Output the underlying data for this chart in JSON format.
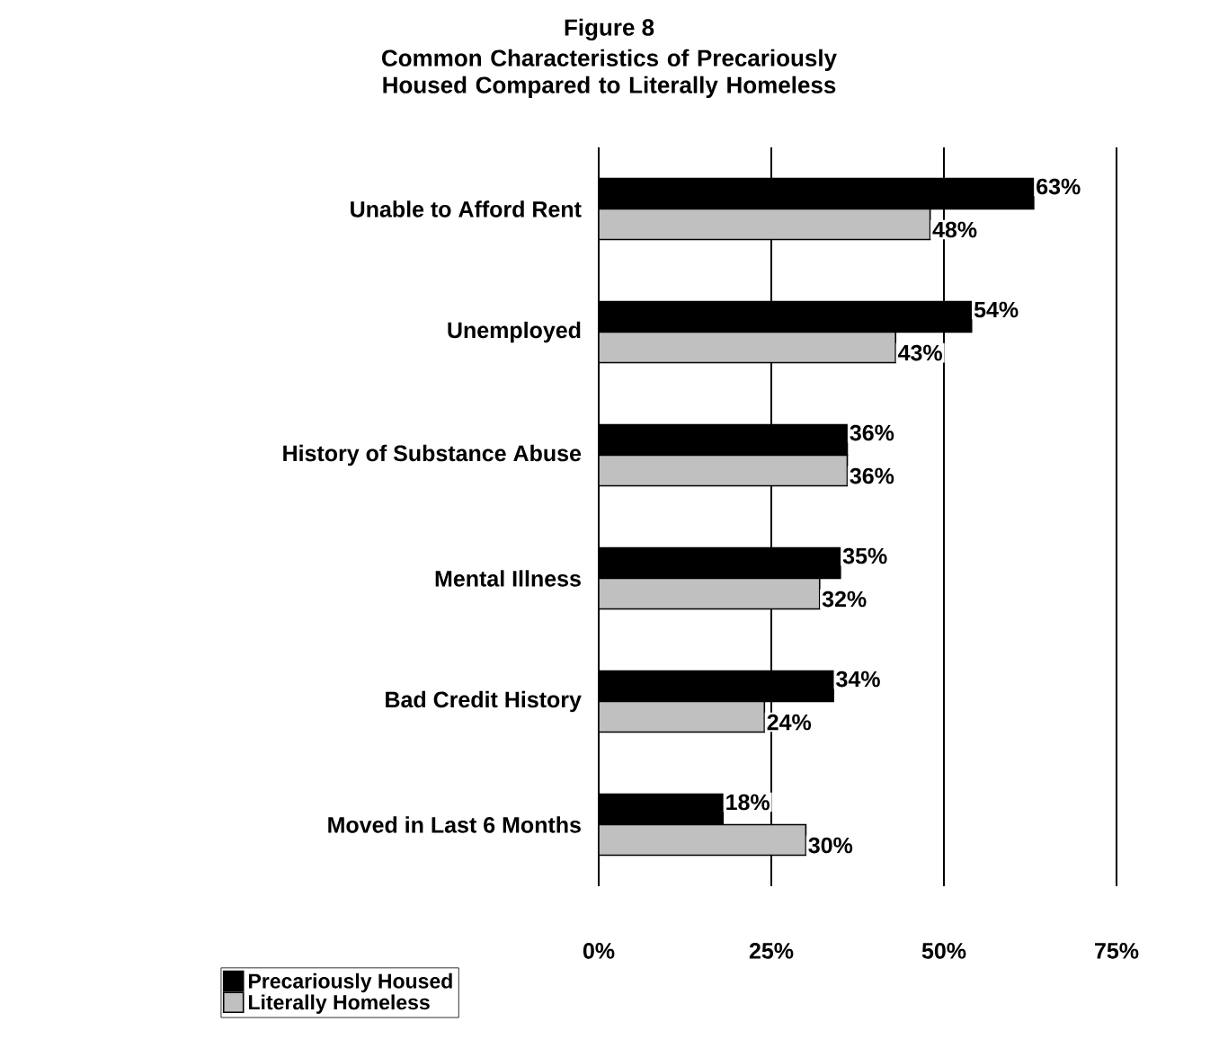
{
  "chart_data": {
    "type": "bar",
    "orientation": "horizontal",
    "title": "Figure 8",
    "subtitle": "Common Characteristics of Precariously Housed Compared to Literally Homeless",
    "categories": [
      "Unable to Afford Rent",
      "Unemployed",
      "History of Substance Abuse",
      "Mental Illness",
      "Bad Credit History",
      "Moved in Last 6 Months"
    ],
    "series": [
      {
        "name": "Precariously Housed",
        "color": "#000000",
        "values": [
          63,
          54,
          36,
          35,
          34,
          18
        ],
        "value_labels": [
          "63%",
          "54%",
          "36%",
          "35%",
          "34%",
          "18%"
        ]
      },
      {
        "name": "Literally Homeless",
        "color": "#c0c0c0",
        "values": [
          48,
          43,
          36,
          32,
          24,
          30
        ],
        "value_labels": [
          "48%",
          "43%",
          "36%",
          "32%",
          "24%",
          "30%"
        ]
      }
    ],
    "xlim": [
      0,
      75
    ],
    "xticks": [
      {
        "value": 0,
        "label": "0%"
      },
      {
        "value": 25,
        "label": "25%"
      },
      {
        "value": 50,
        "label": "50%"
      },
      {
        "value": 75,
        "label": "75%"
      }
    ],
    "grid": "x",
    "legend": "bottom left"
  }
}
